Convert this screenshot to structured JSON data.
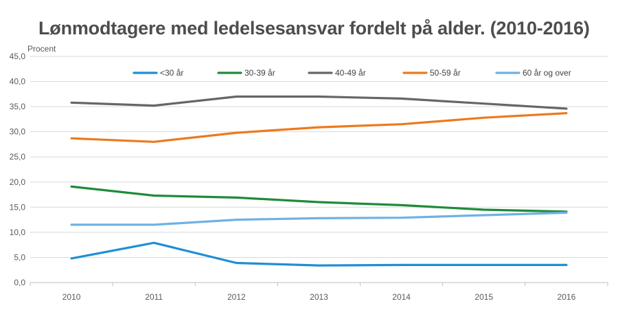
{
  "chart_data": {
    "type": "line",
    "title": "Lønmodtagere med ledelsesansvar fordelt på alder. (2010-2016)",
    "ylabel": "Procent",
    "xlabel": "",
    "ylim": [
      0,
      45
    ],
    "yticks": [
      "0,0",
      "5,0",
      "10,0",
      "15,0",
      "20,0",
      "25,0",
      "30,0",
      "35,0",
      "40,0",
      "45,0"
    ],
    "categories": [
      "2010",
      "2011",
      "2012",
      "2013",
      "2014",
      "2015",
      "2016"
    ],
    "grid": true,
    "legend_position": "top",
    "series": [
      {
        "name": "<30 år",
        "color": "#1f8ed6",
        "values": [
          4.8,
          7.9,
          3.9,
          3.4,
          3.5,
          3.5,
          3.5
        ]
      },
      {
        "name": "30-39 år",
        "color": "#1e8b3a",
        "values": [
          19.1,
          17.3,
          16.9,
          16.0,
          15.4,
          14.5,
          14.1
        ]
      },
      {
        "name": "40-49 år",
        "color": "#666666",
        "values": [
          35.8,
          35.2,
          37.0,
          37.0,
          36.6,
          35.6,
          34.6
        ]
      },
      {
        "name": "50-59 år",
        "color": "#ec7a1c",
        "values": [
          28.7,
          28.0,
          29.8,
          30.9,
          31.5,
          32.8,
          33.7
        ]
      },
      {
        "name": "60 år og over",
        "color": "#6fb1e3",
        "values": [
          11.5,
          11.5,
          12.5,
          12.8,
          12.9,
          13.4,
          13.9
        ]
      }
    ]
  }
}
